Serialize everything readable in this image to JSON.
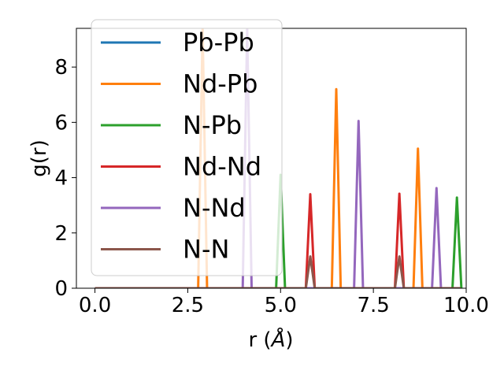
{
  "chart_data": {
    "type": "line",
    "xlabel": "r (",
    "xlabel_unit": "Å",
    "xlabel_close": ")",
    "ylabel": "g(r)",
    "xlim": [
      -0.5,
      10.0
    ],
    "ylim": [
      0,
      9.4
    ],
    "xticks": [
      0.0,
      2.5,
      5.0,
      7.5,
      10.0
    ],
    "xtick_labels": [
      "0.0",
      "2.5",
      "5.0",
      "7.5",
      "10.0"
    ],
    "yticks": [
      0,
      2,
      4,
      6,
      8
    ],
    "ytick_labels": [
      "0",
      "2",
      "4",
      "6",
      "8"
    ],
    "grid": false,
    "legend_position": "upper-left",
    "peak_halfwidth": 0.12,
    "series": [
      {
        "name": "Pb-Pb",
        "color": "#1f77b4",
        "peaks": []
      },
      {
        "name": "Nd-Pb",
        "color": "#ff7f0e",
        "peaks": [
          {
            "r": 2.9,
            "g": 9.4
          },
          {
            "r": 6.5,
            "g": 7.2
          },
          {
            "r": 8.7,
            "g": 5.05
          }
        ]
      },
      {
        "name": "N-Pb",
        "color": "#2ca02c",
        "peaks": [
          {
            "r": 5.0,
            "g": 4.1
          },
          {
            "r": 9.75,
            "g": 3.28
          }
        ]
      },
      {
        "name": "Nd-Nd",
        "color": "#d62728",
        "peaks": [
          {
            "r": 5.8,
            "g": 3.4
          },
          {
            "r": 8.2,
            "g": 3.42
          }
        ]
      },
      {
        "name": "N-Nd",
        "color": "#9467bd",
        "peaks": [
          {
            "r": 4.1,
            "g": 9.4
          },
          {
            "r": 7.1,
            "g": 6.05
          },
          {
            "r": 9.2,
            "g": 3.62
          }
        ]
      },
      {
        "name": "N-N",
        "color": "#8c564b",
        "peaks": [
          {
            "r": 5.8,
            "g": 1.15
          },
          {
            "r": 8.2,
            "g": 1.15
          }
        ]
      }
    ]
  }
}
